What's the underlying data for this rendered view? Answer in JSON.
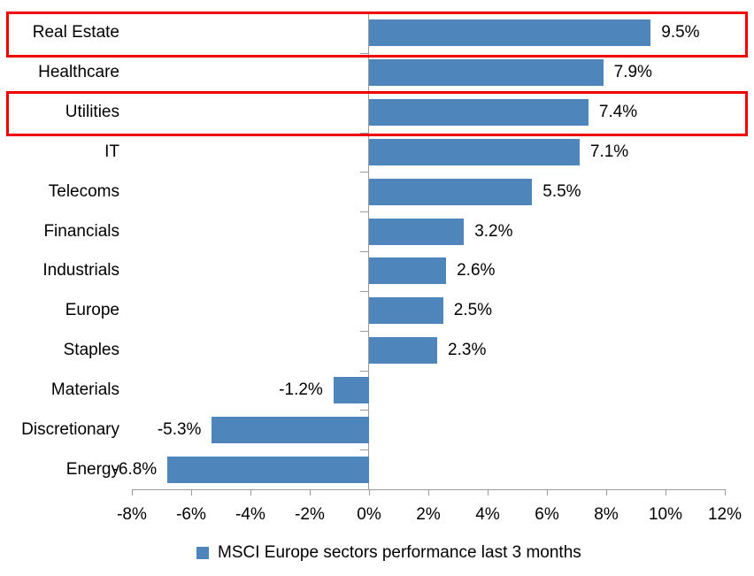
{
  "chart_data": {
    "type": "bar",
    "orientation": "horizontal",
    "title": "",
    "xlabel": "",
    "ylabel": "",
    "categories": [
      "Real Estate",
      "Healthcare",
      "Utilities",
      "IT",
      "Telecoms",
      "Financials",
      "Industrials",
      "Europe",
      "Staples",
      "Materials",
      "Discretionary",
      "Energy"
    ],
    "values": [
      9.5,
      7.9,
      7.4,
      7.1,
      5.5,
      3.2,
      2.6,
      2.5,
      2.3,
      -1.2,
      -5.3,
      -6.8
    ],
    "data_labels": [
      "9.5%",
      "7.9%",
      "7.4%",
      "7.1%",
      "5.5%",
      "3.2%",
      "2.6%",
      "2.5%",
      "2.3%",
      "-1.2%",
      "-5.3%",
      "-6.8%"
    ],
    "x_tick_labels": [
      "-8%",
      "-6%",
      "-4%",
      "-2%",
      "0%",
      "2%",
      "4%",
      "6%",
      "8%",
      "10%",
      "12%"
    ],
    "x_tick_values": [
      -8,
      -6,
      -4,
      -2,
      0,
      2,
      4,
      6,
      8,
      10,
      12
    ],
    "xlim": [
      -8,
      12
    ],
    "grid": false,
    "legend": [
      "MSCI Europe sectors performance last 3 months"
    ],
    "legend_position": "bottom",
    "highlighted_category_indices": [
      0,
      2
    ],
    "colors": {
      "bar": "#4e86bc",
      "axis": "#9b9b9b",
      "text": "#000000",
      "highlight_box": "#ee0000",
      "background": "#ffffff"
    }
  }
}
